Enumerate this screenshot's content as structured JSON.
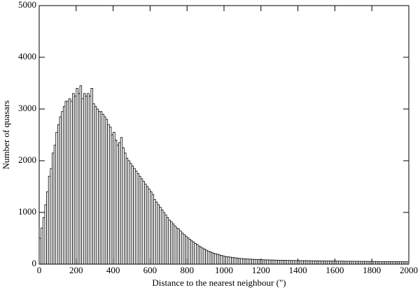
{
  "chart_data": {
    "type": "histogram",
    "xlabel": "Distance to the nearest neighbour (\")",
    "ylabel": "Number of quasars",
    "xlim": [
      0,
      2000
    ],
    "ylim": [
      0,
      5000
    ],
    "xticks": [
      0,
      200,
      400,
      600,
      800,
      1000,
      1200,
      1400,
      1600,
      1800,
      2000
    ],
    "yticks": [
      0,
      1000,
      2000,
      3000,
      4000,
      5000
    ],
    "color": "#ffffff",
    "edgecolor": "#000000",
    "bins": [
      0,
      10,
      20,
      30,
      40,
      50,
      60,
      70,
      80,
      90,
      100,
      110,
      120,
      130,
      140,
      150,
      160,
      170,
      180,
      190,
      200,
      210,
      220,
      230,
      240,
      250,
      260,
      270,
      280,
      290,
      300,
      310,
      320,
      330,
      340,
      350,
      360,
      370,
      380,
      390,
      400,
      410,
      420,
      430,
      440,
      450,
      460,
      470,
      480,
      490,
      500,
      510,
      520,
      530,
      540,
      550,
      560,
      570,
      580,
      590,
      600,
      610,
      620,
      630,
      640,
      650,
      660,
      670,
      680,
      690,
      700,
      710,
      720,
      730,
      740,
      750,
      760,
      770,
      780,
      790,
      800,
      810,
      820,
      830,
      840,
      850,
      860,
      870,
      880,
      890,
      900,
      910,
      920,
      930,
      940,
      950,
      960,
      970,
      980,
      990,
      1000,
      1010,
      1020,
      1030,
      1040,
      1050,
      1060,
      1070,
      1080,
      1090,
      1100,
      1110,
      1120,
      1130,
      1140,
      1150,
      1160,
      1170,
      1180,
      1190,
      1200,
      1210,
      1220,
      1230,
      1240,
      1250,
      1260,
      1270,
      1280,
      1290,
      1300,
      1310,
      1320,
      1330,
      1340,
      1350,
      1360,
      1370,
      1380,
      1390,
      1400,
      1410,
      1420,
      1430,
      1440,
      1450,
      1460,
      1470,
      1480,
      1490,
      1500,
      1510,
      1520,
      1530,
      1540,
      1550,
      1560,
      1570,
      1580,
      1590,
      1600,
      1610,
      1620,
      1630,
      1640,
      1650,
      1660,
      1670,
      1680,
      1690,
      1700,
      1710,
      1720,
      1730,
      1740,
      1750,
      1760,
      1770,
      1780,
      1790,
      1800,
      1810,
      1820,
      1830,
      1840,
      1850,
      1860,
      1870,
      1880,
      1890,
      1900,
      1910,
      1920,
      1930,
      1940,
      1950,
      1960,
      1970,
      1980,
      1990,
      2000
    ],
    "values": [
      500,
      700,
      900,
      1150,
      1400,
      1700,
      1850,
      2150,
      2300,
      2550,
      2700,
      2850,
      2950,
      3050,
      3150,
      3150,
      3200,
      3150,
      3300,
      3250,
      3400,
      3300,
      3450,
      3200,
      3300,
      3250,
      3300,
      3250,
      3400,
      3100,
      3050,
      3000,
      2950,
      2950,
      2900,
      2850,
      2800,
      2700,
      2650,
      2500,
      2550,
      2400,
      2300,
      2350,
      2450,
      2250,
      2150,
      2050,
      2000,
      1950,
      1900,
      1850,
      1800,
      1750,
      1700,
      1650,
      1600,
      1550,
      1500,
      1450,
      1400,
      1350,
      1250,
      1200,
      1150,
      1100,
      1050,
      1000,
      950,
      900,
      850,
      820,
      780,
      740,
      700,
      680,
      640,
      600,
      570,
      540,
      510,
      480,
      450,
      430,
      400,
      380,
      350,
      330,
      310,
      290,
      270,
      250,
      240,
      225,
      210,
      200,
      190,
      180,
      170,
      160,
      150,
      145,
      140,
      135,
      130,
      125,
      120,
      115,
      110,
      108,
      105,
      102,
      100,
      98,
      96,
      94,
      92,
      90,
      88,
      86,
      85,
      84,
      83,
      82,
      81,
      80,
      79,
      78,
      77,
      76,
      75,
      74,
      73,
      72,
      72,
      71,
      71,
      70,
      70,
      69,
      69,
      68,
      68,
      67,
      67,
      66,
      66,
      65,
      65,
      64,
      64,
      63,
      63,
      62,
      62,
      61,
      61,
      60,
      60,
      59,
      59,
      58,
      58,
      57,
      57,
      56,
      56,
      56,
      55,
      55,
      55,
      54,
      54,
      54,
      53,
      53,
      53,
      52,
      52,
      52,
      51,
      51,
      51,
      50,
      50,
      50,
      49,
      49,
      49,
      48,
      48,
      48,
      47,
      47,
      47,
      46,
      46,
      46,
      45,
      45
    ]
  }
}
